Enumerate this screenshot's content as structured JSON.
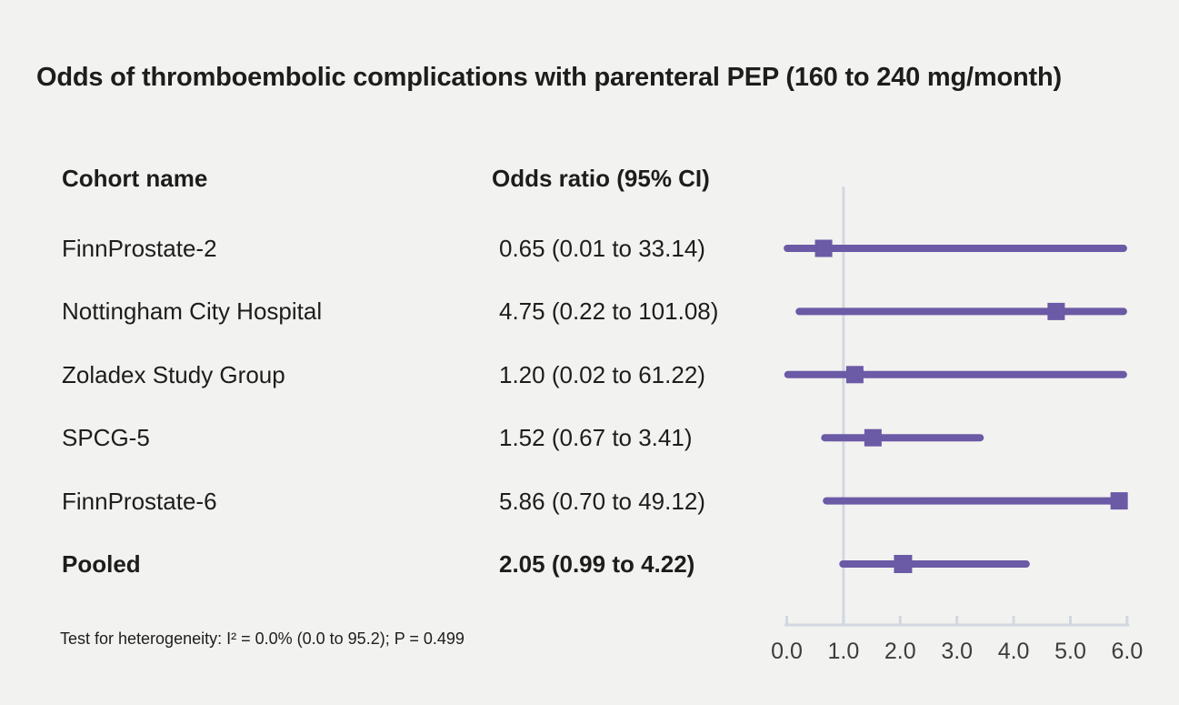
{
  "chart_data": {
    "type": "forest",
    "title": "Odds of thromboembolic complications with parenteral PEP (160 to 240 mg/month)",
    "columns": [
      "Cohort name",
      "Odds ratio (95% CI)"
    ],
    "rows": [
      {
        "label": "FinnProstate-2",
        "or_text": "0.65 (0.01 to 33.14)",
        "or": 0.65,
        "lo": 0.01,
        "hi": 33.14,
        "bold": false
      },
      {
        "label": "Nottingham City Hospital",
        "or_text": "4.75 (0.22 to 101.08)",
        "or": 4.75,
        "lo": 0.22,
        "hi": 101.08,
        "bold": false
      },
      {
        "label": "Zoladex Study Group",
        "or_text": "1.20 (0.02 to 61.22)",
        "or": 1.2,
        "lo": 0.02,
        "hi": 61.22,
        "bold": false
      },
      {
        "label": "SPCG-5",
        "or_text": "1.52 (0.67 to 3.41)",
        "or": 1.52,
        "lo": 0.67,
        "hi": 3.41,
        "bold": false
      },
      {
        "label": "FinnProstate-6",
        "or_text": "5.86 (0.70 to 49.12)",
        "or": 5.86,
        "lo": 0.7,
        "hi": 49.12,
        "bold": false
      },
      {
        "label": "Pooled",
        "or_text": "2.05 (0.99 to 4.22)",
        "or": 2.05,
        "lo": 0.99,
        "hi": 4.22,
        "bold": true
      }
    ],
    "axis": {
      "min": 0.0,
      "max": 6.0,
      "ticks": [
        "0.0",
        "1.0",
        "2.0",
        "3.0",
        "4.0",
        "5.0",
        "6.0"
      ],
      "reference_value": 1.0
    },
    "footnote": "Test for heterogeneity: I² = 0.0% (0.0 to 95.2); P = 0.499",
    "colors": {
      "background": "#f2f2f1",
      "text": "#1d1d1b",
      "marker": "#6b5aa5",
      "axis": "#d2d7e0",
      "tick_label": "#3d3d3d"
    }
  }
}
